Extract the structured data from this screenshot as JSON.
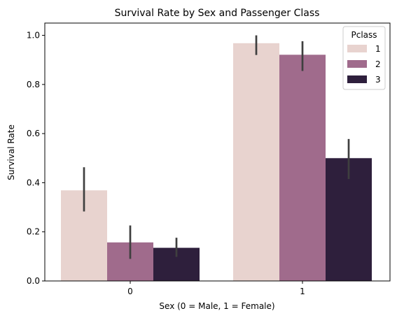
{
  "chart_data": {
    "type": "bar",
    "title": "Survival Rate by Sex and Passenger Class",
    "xlabel": "Sex (0 = Male, 1 = Female)",
    "ylabel": "Survival Rate",
    "categories": [
      "0",
      "1"
    ],
    "ylim": [
      0,
      1.05
    ],
    "yticks": [
      "0.0",
      "0.2",
      "0.4",
      "0.6",
      "0.8",
      "1.0"
    ],
    "grid": false,
    "legend": {
      "title": "Pclass",
      "placement": "top-right"
    },
    "series": [
      {
        "name": "1",
        "color": "#e8d3cf",
        "values": [
          0.369,
          0.968
        ],
        "ci": [
          [
            0.283,
            0.463
          ],
          [
            0.92,
            1.0
          ]
        ]
      },
      {
        "name": "2",
        "color": "#a06b8c",
        "values": [
          0.157,
          0.921
        ],
        "ci": [
          [
            0.09,
            0.226
          ],
          [
            0.855,
            0.976
          ]
        ]
      },
      {
        "name": "3",
        "color": "#2e1f3c",
        "values": [
          0.135,
          0.5
        ],
        "ci": [
          [
            0.098,
            0.176
          ],
          [
            0.415,
            0.578
          ]
        ]
      }
    ],
    "errorbar_color": "#3f3f3f"
  }
}
